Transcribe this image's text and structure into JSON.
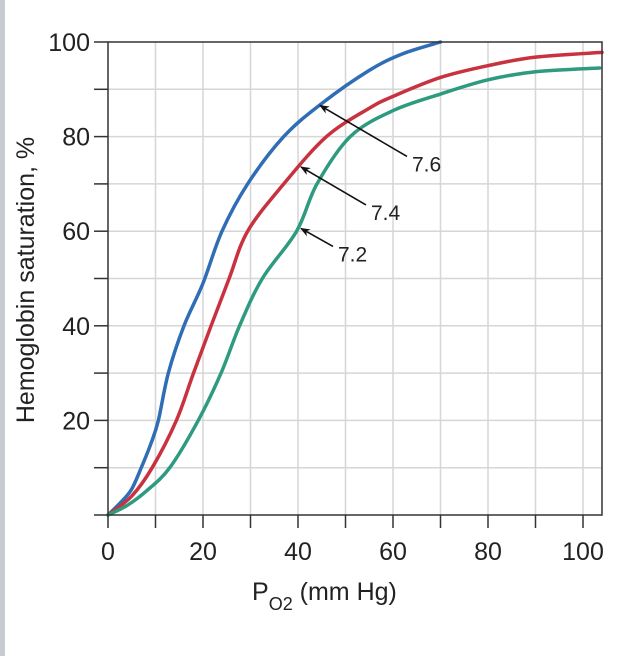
{
  "chart_data": {
    "type": "line",
    "title": "",
    "xlabel": "P",
    "xlabel_sub": "O2",
    "xlabel_unit": " (mm Hg)",
    "ylabel": "Hemoglobin saturation, %",
    "xlim": [
      0,
      104
    ],
    "ylim": [
      0,
      100
    ],
    "x_ticks": [
      0,
      20,
      40,
      60,
      80,
      100
    ],
    "y_ticks": [
      20,
      40,
      60,
      80,
      100
    ],
    "x_tick_labels": [
      "0",
      "20",
      "40",
      "60",
      "80",
      "100"
    ],
    "y_tick_labels": [
      "20",
      "40",
      "60",
      "80",
      "100"
    ],
    "grid": true,
    "grid_step": 10,
    "series": [
      {
        "name": "7.6",
        "color": "#2f6db5",
        "points": [
          [
            0,
            0
          ],
          [
            3,
            3
          ],
          [
            5,
            5.5
          ],
          [
            7,
            10
          ],
          [
            9,
            15
          ],
          [
            10.6,
            20
          ],
          [
            12.7,
            30
          ],
          [
            16,
            40
          ],
          [
            20,
            49
          ],
          [
            24,
            60
          ],
          [
            29.4,
            70
          ],
          [
            37,
            80
          ],
          [
            45,
            87
          ],
          [
            55,
            94
          ],
          [
            62,
            97.5
          ],
          [
            70,
            100
          ]
        ]
      },
      {
        "name": "7.4",
        "color": "#c8323f",
        "points": [
          [
            0,
            0
          ],
          [
            5,
            4
          ],
          [
            9.3,
            10
          ],
          [
            14.4,
            20
          ],
          [
            18,
            30
          ],
          [
            21.7,
            40
          ],
          [
            25.5,
            50
          ],
          [
            29.4,
            60
          ],
          [
            37,
            70
          ],
          [
            46,
            80
          ],
          [
            55,
            86
          ],
          [
            60,
            88.5
          ],
          [
            70,
            92.5
          ],
          [
            80,
            95
          ],
          [
            90,
            96.8
          ],
          [
            104,
            97.8
          ]
        ]
      },
      {
        "name": "7.2",
        "color": "#2e9a80",
        "points": [
          [
            0,
            0
          ],
          [
            4,
            2
          ],
          [
            8,
            5
          ],
          [
            13,
            10
          ],
          [
            19,
            20
          ],
          [
            23.8,
            30
          ],
          [
            27.7,
            40
          ],
          [
            32.5,
            50
          ],
          [
            39.7,
            60
          ],
          [
            44,
            70
          ],
          [
            51,
            80
          ],
          [
            60,
            85.5
          ],
          [
            70,
            89
          ],
          [
            80,
            92
          ],
          [
            90,
            93.7
          ],
          [
            103.5,
            94.5
          ]
        ]
      }
    ],
    "annotations": [
      {
        "text": "7.6",
        "series": "7.6",
        "arrow_to": [
          44,
          87
        ]
      },
      {
        "text": "7.4",
        "series": "7.4",
        "arrow_to": [
          40,
          74
        ]
      },
      {
        "text": "7.2",
        "series": "7.2",
        "arrow_to": [
          40,
          61
        ]
      }
    ]
  }
}
